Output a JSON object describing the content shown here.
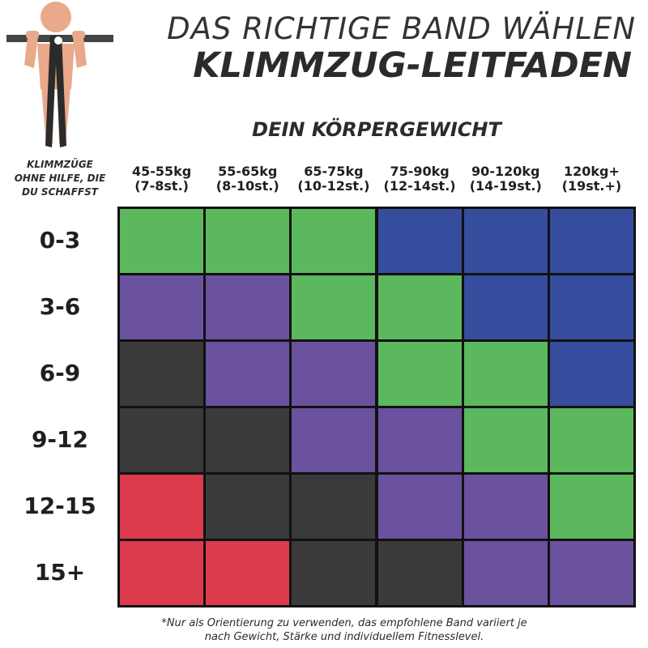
{
  "header": {
    "title_line1": "DAS RICHTIGE BAND WÄHLEN",
    "title_line2": "KLIMMZUG-LEITFADEN",
    "subtitle": "DEIN KÖRPERGEWICHT"
  },
  "illustration": {
    "icon": "person-doing-pull-up-icon",
    "logo_icon": "brand-logo-icon"
  },
  "row_axis_title": {
    "line1": "KLIMMZÜGE",
    "line2": "OHNE HILFE, DIE",
    "line3": "DU SCHAFFST"
  },
  "colors": {
    "green": "#5cb85c",
    "blue": "#354d9c",
    "purple": "#6a529f",
    "black": "#3a3a3b",
    "red": "#dc3b4d"
  },
  "chart_data": {
    "type": "table",
    "title": "KLIMMZUG-LEITFADEN",
    "columns": [
      {
        "kg": "45-55kg",
        "st": "(7-8st.)"
      },
      {
        "kg": "55-65kg",
        "st": "(8-10st.)"
      },
      {
        "kg": "65-75kg",
        "st": "(10-12st.)"
      },
      {
        "kg": "75-90kg",
        "st": "(12-14st.)"
      },
      {
        "kg": "90-120kg",
        "st": "(14-19st.)"
      },
      {
        "kg": "120kg+",
        "st": "(19st.+)"
      }
    ],
    "rows": [
      "0-3",
      "3-6",
      "6-9",
      "9-12",
      "12-15",
      "15+"
    ],
    "cells": [
      [
        "green",
        "green",
        "green",
        "blue",
        "blue",
        "blue"
      ],
      [
        "purple",
        "purple",
        "green",
        "green",
        "blue",
        "blue"
      ],
      [
        "black",
        "purple",
        "purple",
        "green",
        "green",
        "blue"
      ],
      [
        "black",
        "black",
        "purple",
        "purple",
        "green",
        "green"
      ],
      [
        "red",
        "black",
        "black",
        "purple",
        "purple",
        "green"
      ],
      [
        "red",
        "red",
        "black",
        "black",
        "purple",
        "purple"
      ]
    ]
  },
  "footnote": {
    "line1": "*Nur als Orientierung zu verwenden, das empfohlene Band variiert je",
    "line2": "nach Gewicht, Stärke und individuellem Fitnesslevel."
  }
}
